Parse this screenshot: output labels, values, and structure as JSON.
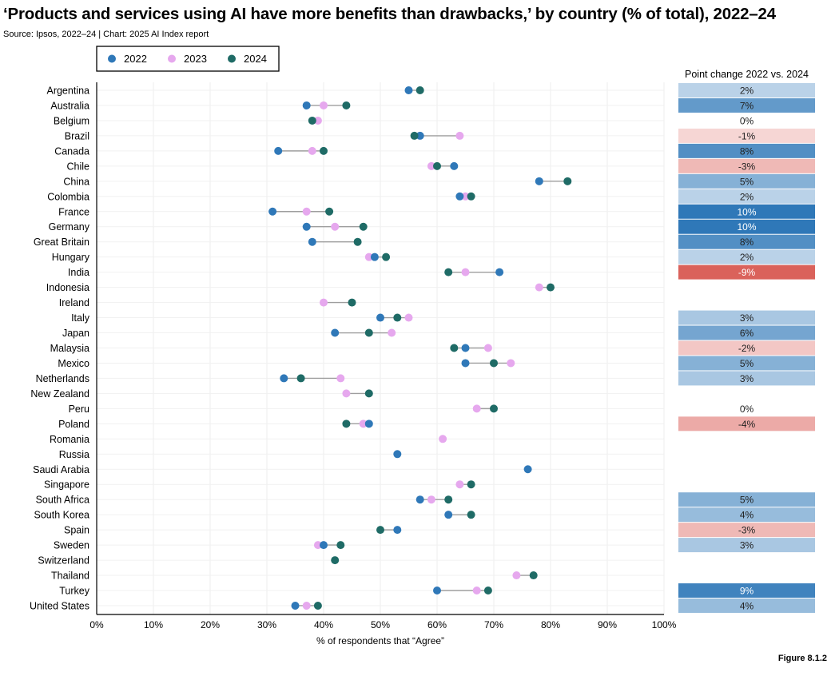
{
  "header": {
    "title": "‘Products and services using AI have more benefits than drawbacks,’ by country (% of total), 2022–24",
    "source": "Source: Ipsos, 2022–24 | Chart: 2025 AI Index report"
  },
  "footer": {
    "figure_label": "Figure 8.1.2"
  },
  "colors": {
    "2022": "#2f78b8",
    "2023": "#e6a8ee",
    "2024": "#1f6b66",
    "connector": "#9e9e9e",
    "positive": "#2f78b8",
    "negative": "#d9534f"
  },
  "chart_data": {
    "type": "dot-plot",
    "xlabel": "% of respondents that “Agree”",
    "xlim": [
      0,
      100
    ],
    "xticks": [
      "0%",
      "10%",
      "20%",
      "30%",
      "40%",
      "50%",
      "60%",
      "70%",
      "80%",
      "90%",
      "100%"
    ],
    "grid": true,
    "legend": [
      "2022",
      "2023",
      "2024"
    ],
    "legend_placement": "top-left",
    "side_table_title": "Point change 2022 vs. 2024",
    "rows": [
      {
        "country": "Argentina",
        "v2022": 55,
        "v2023": null,
        "v2024": 57,
        "change": 2,
        "change_label": "2%"
      },
      {
        "country": "Australia",
        "v2022": 37,
        "v2023": 40,
        "v2024": 44,
        "change": 7,
        "change_label": "7%"
      },
      {
        "country": "Belgium",
        "v2022": null,
        "v2023": 39,
        "v2024": 38,
        "change": 0,
        "change_label": "0%"
      },
      {
        "country": "Brazil",
        "v2022": 57,
        "v2023": 64,
        "v2024": 56,
        "change": -1,
        "change_label": "-1%"
      },
      {
        "country": "Canada",
        "v2022": 32,
        "v2023": 38,
        "v2024": 40,
        "change": 8,
        "change_label": "8%"
      },
      {
        "country": "Chile",
        "v2022": 63,
        "v2023": 59,
        "v2024": 60,
        "change": -3,
        "change_label": "-3%"
      },
      {
        "country": "China",
        "v2022": 78,
        "v2023": null,
        "v2024": 83,
        "change": 5,
        "change_label": "5%"
      },
      {
        "country": "Colombia",
        "v2022": 64,
        "v2023": 65,
        "v2024": 66,
        "change": 2,
        "change_label": "2%"
      },
      {
        "country": "France",
        "v2022": 31,
        "v2023": 37,
        "v2024": 41,
        "change": 10,
        "change_label": "10%"
      },
      {
        "country": "Germany",
        "v2022": 37,
        "v2023": 42,
        "v2024": 47,
        "change": 10,
        "change_label": "10%"
      },
      {
        "country": "Great Britain",
        "v2022": 38,
        "v2023": null,
        "v2024": 46,
        "change": 8,
        "change_label": "8%"
      },
      {
        "country": "Hungary",
        "v2022": 49,
        "v2023": 48,
        "v2024": 51,
        "change": 2,
        "change_label": "2%"
      },
      {
        "country": "India",
        "v2022": 71,
        "v2023": 65,
        "v2024": 62,
        "change": -9,
        "change_label": "-9%"
      },
      {
        "country": "Indonesia",
        "v2022": null,
        "v2023": 78,
        "v2024": 80,
        "change": null,
        "change_label": ""
      },
      {
        "country": "Ireland",
        "v2022": null,
        "v2023": 40,
        "v2024": 45,
        "change": null,
        "change_label": ""
      },
      {
        "country": "Italy",
        "v2022": 50,
        "v2023": 55,
        "v2024": 53,
        "change": 3,
        "change_label": "3%"
      },
      {
        "country": "Japan",
        "v2022": 42,
        "v2023": 52,
        "v2024": 48,
        "change": 6,
        "change_label": "6%"
      },
      {
        "country": "Malaysia",
        "v2022": 65,
        "v2023": 69,
        "v2024": 63,
        "change": -2,
        "change_label": "-2%"
      },
      {
        "country": "Mexico",
        "v2022": 65,
        "v2023": 73,
        "v2024": 70,
        "change": 5,
        "change_label": "5%"
      },
      {
        "country": "Netherlands",
        "v2022": 33,
        "v2023": 43,
        "v2024": 36,
        "change": 3,
        "change_label": "3%"
      },
      {
        "country": "New Zealand",
        "v2022": null,
        "v2023": 44,
        "v2024": 48,
        "change": null,
        "change_label": ""
      },
      {
        "country": "Peru",
        "v2022": null,
        "v2023": 67,
        "v2024": 70,
        "change": 0,
        "change_label": "0%"
      },
      {
        "country": "Poland",
        "v2022": 48,
        "v2023": 47,
        "v2024": 44,
        "change": -4,
        "change_label": "-4%"
      },
      {
        "country": "Romania",
        "v2022": null,
        "v2023": 61,
        "v2024": null,
        "change": null,
        "change_label": ""
      },
      {
        "country": "Russia",
        "v2022": 53,
        "v2023": null,
        "v2024": null,
        "change": null,
        "change_label": ""
      },
      {
        "country": "Saudi Arabia",
        "v2022": 76,
        "v2023": null,
        "v2024": null,
        "change": null,
        "change_label": ""
      },
      {
        "country": "Singapore",
        "v2022": null,
        "v2023": 64,
        "v2024": 66,
        "change": null,
        "change_label": ""
      },
      {
        "country": "South Africa",
        "v2022": 57,
        "v2023": 59,
        "v2024": 62,
        "change": 5,
        "change_label": "5%"
      },
      {
        "country": "South Korea",
        "v2022": 62,
        "v2023": null,
        "v2024": 66,
        "change": 4,
        "change_label": "4%"
      },
      {
        "country": "Spain",
        "v2022": 53,
        "v2023": null,
        "v2024": 50,
        "change": -3,
        "change_label": "-3%"
      },
      {
        "country": "Sweden",
        "v2022": 40,
        "v2023": 39,
        "v2024": 43,
        "change": 3,
        "change_label": "3%"
      },
      {
        "country": "Switzerland",
        "v2022": null,
        "v2023": null,
        "v2024": 42,
        "change": null,
        "change_label": ""
      },
      {
        "country": "Thailand",
        "v2022": null,
        "v2023": 74,
        "v2024": 77,
        "change": null,
        "change_label": ""
      },
      {
        "country": "Turkey",
        "v2022": 60,
        "v2023": 67,
        "v2024": 69,
        "change": 9,
        "change_label": "9%"
      },
      {
        "country": "United States",
        "v2022": 35,
        "v2023": 37,
        "v2024": 39,
        "change": 4,
        "change_label": "4%"
      }
    ]
  }
}
